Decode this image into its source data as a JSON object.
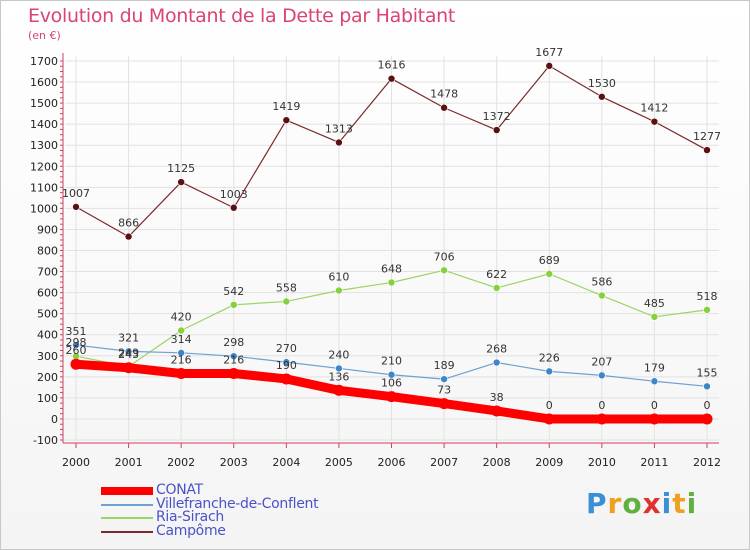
{
  "header": {
    "title": "Evolution du Montant de la Dette par Habitant",
    "unit": "(en €)"
  },
  "chart_data": {
    "type": "line",
    "title": "Evolution du Montant de la Dette par Habitant",
    "ylabel": "(en €)",
    "xlabel": "",
    "ylim": [
      -100,
      1700
    ],
    "yticks": [
      -100,
      0,
      100,
      200,
      300,
      400,
      500,
      600,
      700,
      800,
      900,
      1000,
      1100,
      1200,
      1300,
      1400,
      1500,
      1600,
      1700
    ],
    "categories": [
      "2000",
      "2001",
      "2002",
      "2003",
      "2004",
      "2005",
      "2006",
      "2007",
      "2008",
      "2009",
      "2010",
      "2011",
      "2012"
    ],
    "grid": true,
    "legend": "bottom-left",
    "series": [
      {
        "name": "CONAT",
        "color": "#ff0000",
        "width": 9,
        "values": [
          260,
          243,
          216,
          216,
          190,
          136,
          106,
          73,
          38,
          0,
          0,
          0,
          0
        ]
      },
      {
        "name": "Villefranche-de-Conflent",
        "color": "#6ea0d0",
        "point_color": "#3f86c8",
        "width": 1.2,
        "values": [
          351,
          321,
          314,
          298,
          270,
          240,
          210,
          189,
          268,
          226,
          207,
          179,
          155
        ]
      },
      {
        "name": "Ria-Sirach",
        "color": "#9ad466",
        "point_color": "#86d03c",
        "width": 1.2,
        "values": [
          298,
          249,
          420,
          542,
          558,
          610,
          648,
          706,
          622,
          689,
          586,
          485,
          518
        ]
      },
      {
        "name": "Campôme",
        "color": "#7a2a2a",
        "point_color": "#5a1010",
        "width": 1.2,
        "values": [
          1007,
          866,
          1125,
          1003,
          1419,
          1313,
          1616,
          1478,
          1372,
          1677,
          1530,
          1412,
          1277
        ]
      }
    ]
  },
  "logo": {
    "text": "Proxiti",
    "letters": [
      "P",
      "r",
      "o",
      "x",
      "i",
      "t",
      "i"
    ],
    "colors": [
      "#3a8fd6",
      "#f0a020",
      "#60b040",
      "#e03030",
      "#3a8fd6",
      "#f0a020",
      "#60b040"
    ]
  }
}
